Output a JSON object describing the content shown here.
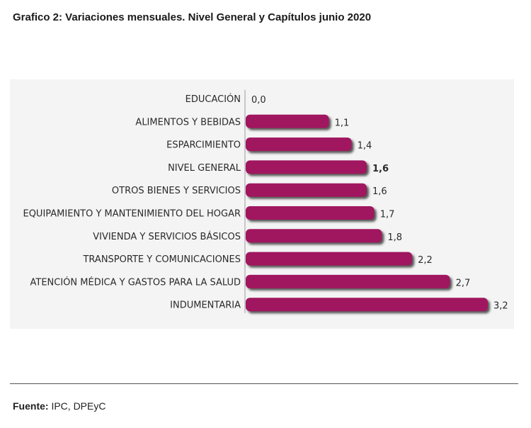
{
  "title": "Grafico 2: Variaciones mensuales.  Nivel General y Capítulos junio  2020",
  "source": {
    "label": "Fuente:",
    "text": " IPC, DPEyC"
  },
  "colors": {
    "bar": "#a0165f",
    "shadow": "#3a3a3a",
    "panel": "#f4f4f4"
  },
  "chart_data": {
    "type": "bar",
    "orientation": "horizontal",
    "title": "Grafico 2: Variaciones mensuales.  Nivel General y Capítulos junio  2020",
    "categories": [
      "EDUCACIÓN",
      "ALIMENTOS Y BEBIDAS",
      "ESPARCIMIENTO",
      "NIVEL GENERAL",
      "OTROS BIENES Y SERVICIOS",
      "EQUIPAMIENTO Y MANTENIMIENTO DEL HOGAR",
      "VIVIENDA Y SERVICIOS BÁSICOS",
      "TRANSPORTE Y COMUNICACIONES",
      "ATENCIÓN MÉDICA Y GASTOS PARA LA SALUD",
      "INDUMENTARIA"
    ],
    "values": [
      0.0,
      1.1,
      1.4,
      1.6,
      1.6,
      1.7,
      1.8,
      2.2,
      2.7,
      3.2
    ],
    "value_labels": [
      "0,0",
      "1,1",
      "1,4",
      "1,6",
      "1,6",
      "1,7",
      "1,8",
      "2,2",
      "2,7",
      "3,2"
    ],
    "highlight": "NIVEL GENERAL",
    "xlim": [
      0,
      3.2
    ],
    "grid": false,
    "legend": false
  }
}
